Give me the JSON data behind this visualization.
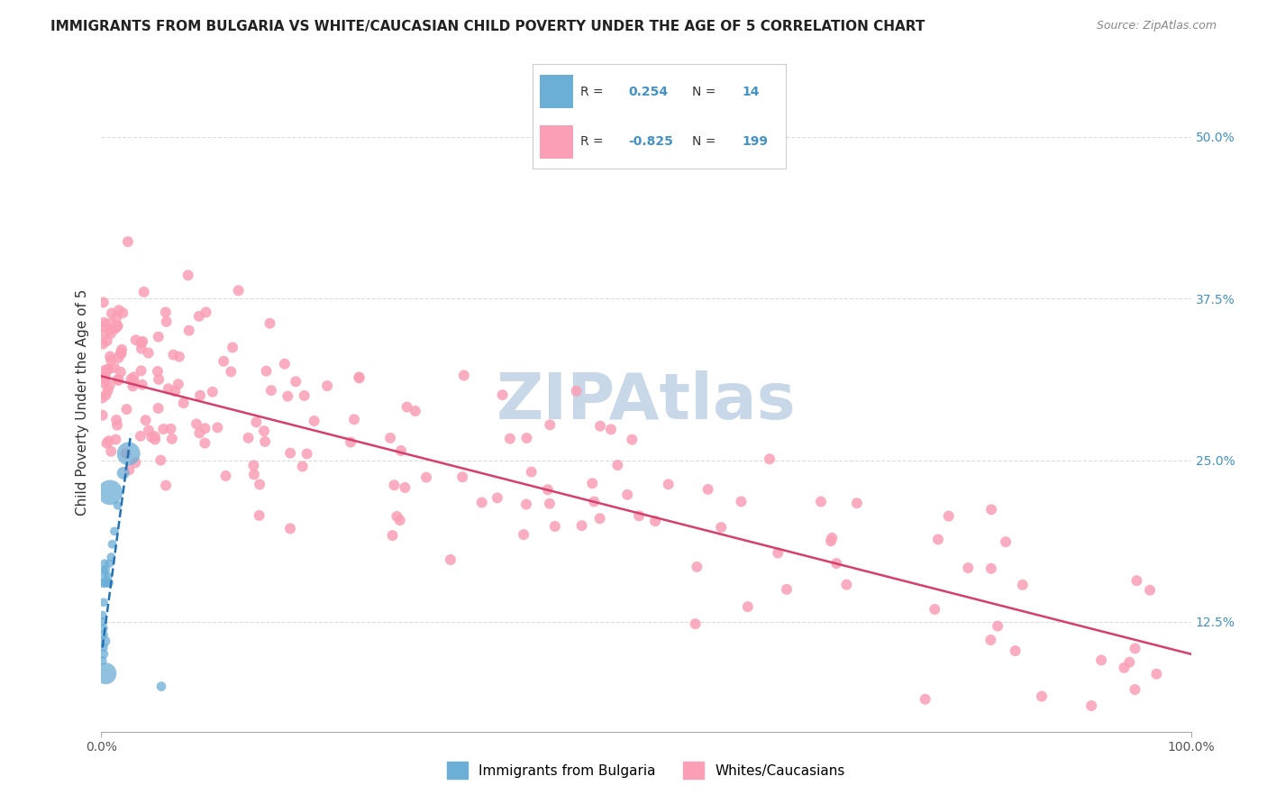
{
  "title": "IMMIGRANTS FROM BULGARIA VS WHITE/CAUCASIAN CHILD POVERTY UNDER THE AGE OF 5 CORRELATION CHART",
  "source": "Source: ZipAtlas.com",
  "ylabel": "Child Poverty Under the Age of 5",
  "xlim": [
    0,
    1.0
  ],
  "ylim": [
    0.04,
    0.55
  ],
  "bg_color": "#ffffff",
  "grid_color": "#cccccc",
  "watermark_color": "#c8d8e8",
  "blue_color": "#6baed6",
  "pink_color": "#fa9fb5",
  "blue_line_color": "#2171b5",
  "pink_line_color": "#d63e6b",
  "legend_r1": "0.254",
  "legend_n1": "14",
  "legend_r2": "-0.825",
  "legend_n2": "199",
  "tick_label_color": "#4292c6"
}
